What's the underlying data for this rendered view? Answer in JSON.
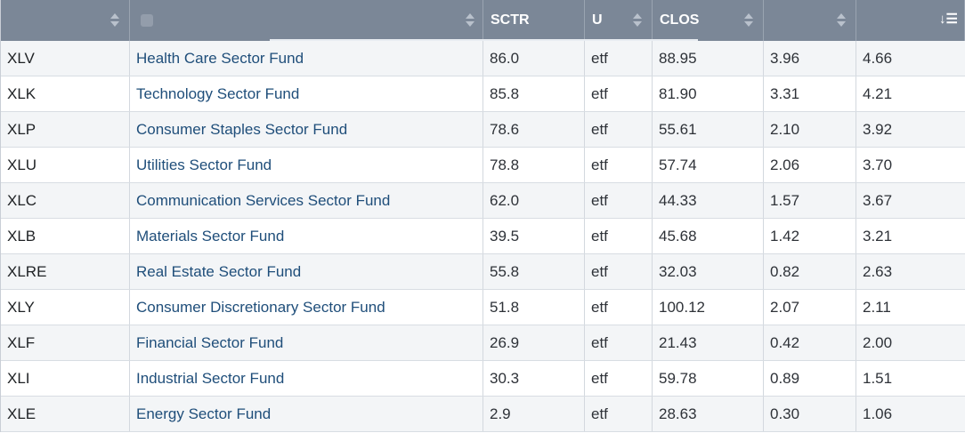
{
  "header": {
    "columns": [
      "",
      "",
      "SCTR",
      "U",
      "CLOS",
      "",
      ""
    ]
  },
  "rows": [
    {
      "symbol": "XLV",
      "name": "Health Care Sector Fund",
      "sctr": "86.0",
      "u": "etf",
      "close": "88.95",
      "col6": "3.96",
      "col7": "4.66"
    },
    {
      "symbol": "XLK",
      "name": "Technology Sector Fund",
      "sctr": "85.8",
      "u": "etf",
      "close": "81.90",
      "col6": "3.31",
      "col7": "4.21"
    },
    {
      "symbol": "XLP",
      "name": "Consumer Staples Sector Fund",
      "sctr": "78.6",
      "u": "etf",
      "close": "55.61",
      "col6": "2.10",
      "col7": "3.92"
    },
    {
      "symbol": "XLU",
      "name": "Utilities Sector Fund",
      "sctr": "78.8",
      "u": "etf",
      "close": "57.74",
      "col6": "2.06",
      "col7": "3.70"
    },
    {
      "symbol": "XLC",
      "name": "Communication Services Sector Fund",
      "sctr": "62.0",
      "u": "etf",
      "close": "44.33",
      "col6": "1.57",
      "col7": "3.67"
    },
    {
      "symbol": "XLB",
      "name": "Materials Sector Fund",
      "sctr": "39.5",
      "u": "etf",
      "close": "45.68",
      "col6": "1.42",
      "col7": "3.21"
    },
    {
      "symbol": "XLRE",
      "name": "Real Estate Sector Fund",
      "sctr": "55.8",
      "u": "etf",
      "close": "32.03",
      "col6": "0.82",
      "col7": "2.63"
    },
    {
      "symbol": "XLY",
      "name": "Consumer Discretionary Sector Fund",
      "sctr": "51.8",
      "u": "etf",
      "close": "100.12",
      "col6": "2.07",
      "col7": "2.11"
    },
    {
      "symbol": "XLF",
      "name": "Financial Sector Fund",
      "sctr": "26.9",
      "u": "etf",
      "close": "21.43",
      "col6": "0.42",
      "col7": "2.00"
    },
    {
      "symbol": "XLI",
      "name": "Industrial Sector Fund",
      "sctr": "30.3",
      "u": "etf",
      "close": "59.78",
      "col6": "0.89",
      "col7": "1.51"
    },
    {
      "symbol": "XLE",
      "name": "Energy Sector Fund",
      "sctr": "2.9",
      "u": "etf",
      "close": "28.63",
      "col6": "0.30",
      "col7": "1.06"
    }
  ]
}
